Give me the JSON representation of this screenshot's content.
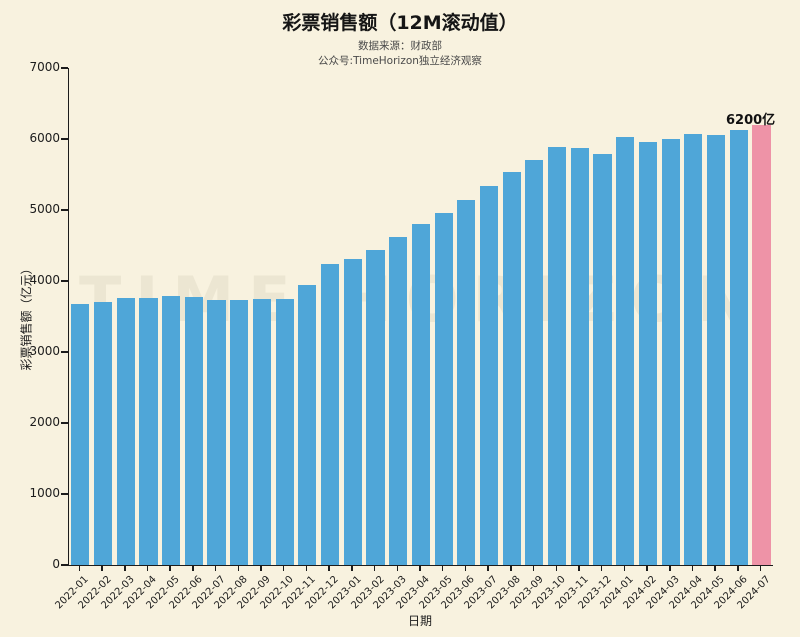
{
  "title": "彩票销售额（12M滚动值）",
  "subtitle": {
    "line1": "数据来源：财政部",
    "line2": "公众号:TimeHorizon独立经济观察"
  },
  "watermark": "TIME HORIZON",
  "colors": {
    "background": "#f8f2df",
    "bar": "#4fa6d8",
    "highlight_bar": "#ee93a7",
    "axis": "#1c1c1c",
    "subtitle_text": "#4a4a4a"
  },
  "chart_data": {
    "type": "bar",
    "title": "彩票销售额（12M滚动值）",
    "xlabel": "日期",
    "ylabel": "彩票销售额（亿元）",
    "ylim": [
      0,
      7000
    ],
    "yticks": [
      0,
      1000,
      2000,
      3000,
      4000,
      5000,
      6000,
      7000
    ],
    "grid": false,
    "legend": "none",
    "categories": [
      "2022-01",
      "2022-02",
      "2022-03",
      "2022-04",
      "2022-05",
      "2022-06",
      "2022-07",
      "2022-08",
      "2022-09",
      "2022-10",
      "2022-11",
      "2022-12",
      "2023-01",
      "2023-02",
      "2023-03",
      "2023-04",
      "2023-05",
      "2023-06",
      "2023-07",
      "2023-08",
      "2023-09",
      "2023-10",
      "2023-11",
      "2023-12",
      "2024-01",
      "2024-02",
      "2024-03",
      "2024-04",
      "2024-05",
      "2024-06",
      "2024-07"
    ],
    "values": [
      3680,
      3700,
      3760,
      3760,
      3790,
      3770,
      3730,
      3730,
      3745,
      3750,
      3945,
      4240,
      4310,
      4440,
      4620,
      4800,
      4960,
      5140,
      5340,
      5535,
      5700,
      5890,
      5875,
      5790,
      6030,
      5960,
      6000,
      6070,
      6060,
      6120,
      6200
    ],
    "highlight_index": 30,
    "annotation": "6200亿"
  }
}
